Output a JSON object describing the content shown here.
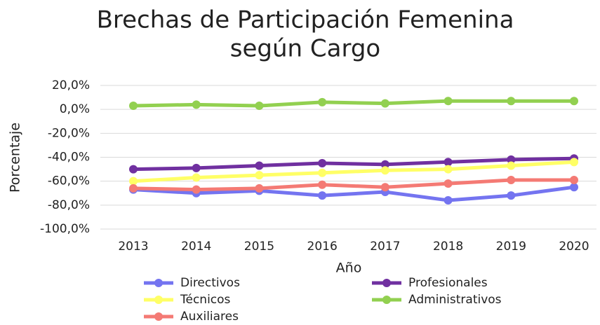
{
  "chart_data": {
    "type": "line",
    "title": [
      "Brechas de Participación Femenina",
      "según Cargo"
    ],
    "xlabel": "Año",
    "ylabel": "Porcentaje",
    "categories": [
      "2013",
      "2014",
      "2015",
      "2016",
      "2017",
      "2018",
      "2019",
      "2020"
    ],
    "series": [
      {
        "name": "Directivos",
        "color": "#7474f0",
        "values": [
          -67,
          -70,
          -68,
          -72,
          -69,
          -76,
          -72,
          -65
        ]
      },
      {
        "name": "Profesionales",
        "color": "#7030a0",
        "values": [
          -50,
          -49,
          -47,
          -45,
          -46,
          -44,
          -42,
          -41
        ]
      },
      {
        "name": "Técnicos",
        "color": "#ffff66",
        "values": [
          -60,
          -57,
          -55,
          -53,
          -51,
          -50,
          -47,
          -44
        ]
      },
      {
        "name": "Administrativos",
        "color": "#92d050",
        "values": [
          3,
          4,
          3,
          6,
          5,
          7,
          7,
          7
        ]
      },
      {
        "name": "Auxiliares",
        "color": "#f47a74",
        "values": [
          -66,
          -67,
          -66,
          -63,
          -65,
          -62,
          -59,
          -59
        ]
      }
    ],
    "ylim": [
      -100,
      20
    ],
    "yticks": [
      {
        "value": 20,
        "label": "20,0%"
      },
      {
        "value": 0,
        "label": "0,0%"
      },
      {
        "value": -20,
        "label": "-20,0%"
      },
      {
        "value": -40,
        "label": "-40,0%"
      },
      {
        "value": -60,
        "label": "-60,0%"
      },
      {
        "value": -80,
        "label": "-80,0%"
      },
      {
        "value": -100,
        "label": "-100,0%"
      }
    ],
    "grid": true
  }
}
